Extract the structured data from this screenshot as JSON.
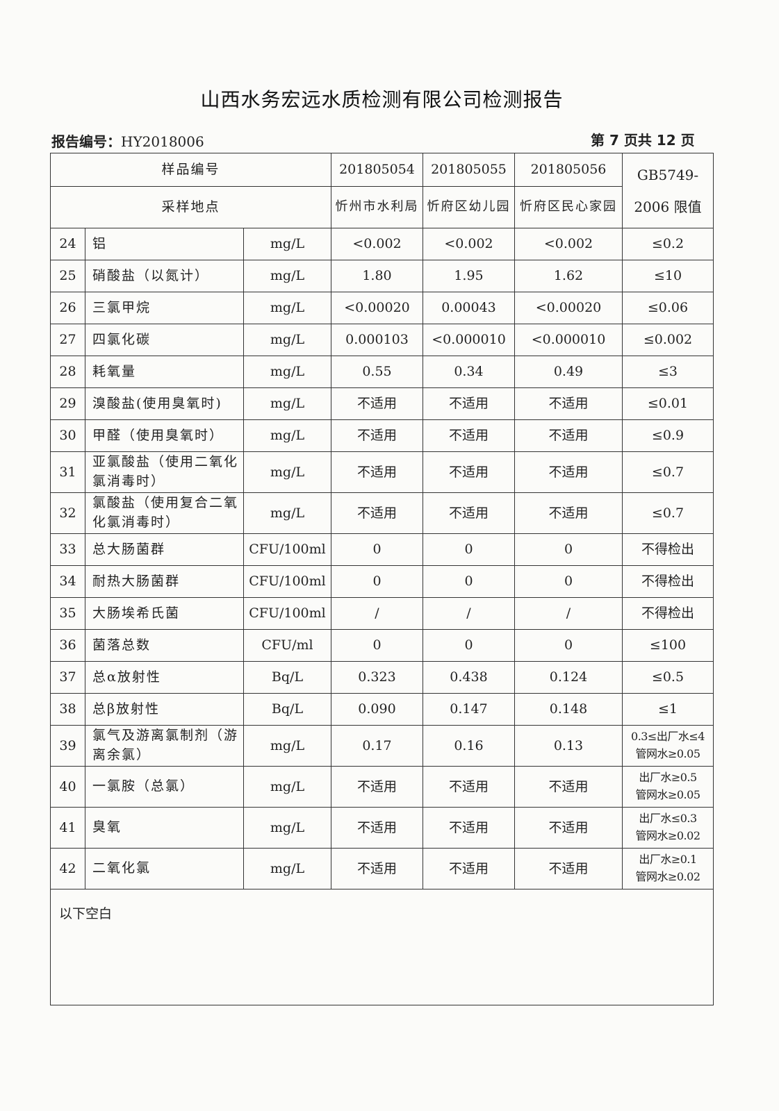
{
  "title": "山西水务宏远水质检测有限公司检测报告",
  "report_no_label": "报告编号：",
  "report_no": "HY2018006",
  "page_info": "第 7 页共 12 页",
  "header": {
    "sample_no_label": "样品编号",
    "site_label": "采样地点",
    "standard_label": "GB5749-2006 限值",
    "samples": [
      {
        "no": "201805054",
        "site": "忻州市水利局"
      },
      {
        "no": "201805055",
        "site": "忻府区幼儿园"
      },
      {
        "no": "201805056",
        "site": "忻府区民心家园"
      }
    ]
  },
  "rows": [
    {
      "n": "24",
      "name": "铝",
      "unit": "mg/L",
      "v": [
        "<0.002",
        "<0.002",
        "<0.002"
      ],
      "limit": "≤0.2"
    },
    {
      "n": "25",
      "name": "硝酸盐（以氮计）",
      "unit": "mg/L",
      "v": [
        "1.80",
        "1.95",
        "1.62"
      ],
      "limit": "≤10"
    },
    {
      "n": "26",
      "name": "三氯甲烷",
      "unit": "mg/L",
      "v": [
        "<0.00020",
        "0.00043",
        "<0.00020"
      ],
      "limit": "≤0.06"
    },
    {
      "n": "27",
      "name": "四氯化碳",
      "unit": "mg/L",
      "v": [
        "0.000103",
        "<0.000010",
        "<0.000010"
      ],
      "limit": "≤0.002"
    },
    {
      "n": "28",
      "name": "耗氧量",
      "unit": "mg/L",
      "v": [
        "0.55",
        "0.34",
        "0.49"
      ],
      "limit": "≤3"
    },
    {
      "n": "29",
      "name": "溴酸盐(使用臭氧时)",
      "unit": "mg/L",
      "v": [
        "不适用",
        "不适用",
        "不适用"
      ],
      "limit": "≤0.01"
    },
    {
      "n": "30",
      "name": "甲醛（使用臭氧时）",
      "unit": "mg/L",
      "v": [
        "不适用",
        "不适用",
        "不适用"
      ],
      "limit": "≤0.9"
    },
    {
      "n": "31",
      "name": "亚氯酸盐（使用二氧化氯消毒时）",
      "unit": "mg/L",
      "v": [
        "不适用",
        "不适用",
        "不适用"
      ],
      "limit": "≤0.7",
      "tall": true
    },
    {
      "n": "32",
      "name": "氯酸盐（使用复合二氧化氯消毒时）",
      "unit": "mg/L",
      "v": [
        "不适用",
        "不适用",
        "不适用"
      ],
      "limit": "≤0.7",
      "tall": true
    },
    {
      "n": "33",
      "name": "总大肠菌群",
      "unit": "CFU/100ml",
      "v": [
        "0",
        "0",
        "0"
      ],
      "limit": "不得检出"
    },
    {
      "n": "34",
      "name": "耐热大肠菌群",
      "unit": "CFU/100ml",
      "v": [
        "0",
        "0",
        "0"
      ],
      "limit": "不得检出"
    },
    {
      "n": "35",
      "name": "大肠埃希氏菌",
      "unit": "CFU/100ml",
      "v": [
        "/",
        "/",
        "/"
      ],
      "limit": "不得检出"
    },
    {
      "n": "36",
      "name": "菌落总数",
      "unit": "CFU/ml",
      "v": [
        "0",
        "0",
        "0"
      ],
      "limit": "≤100"
    },
    {
      "n": "37",
      "name": "总α放射性",
      "unit": "Bq/L",
      "v": [
        "0.323",
        "0.438",
        "0.124"
      ],
      "limit": "≤0.5"
    },
    {
      "n": "38",
      "name": "总β放射性",
      "unit": "Bq/L",
      "v": [
        "0.090",
        "0.147",
        "0.148"
      ],
      "limit": "≤1"
    },
    {
      "n": "39",
      "name": "氯气及游离氯制剂（游离余氯）",
      "unit": "mg/L",
      "v": [
        "0.17",
        "0.16",
        "0.13"
      ],
      "limit": "0.3≤出厂水≤4",
      "limit2": "管网水≥0.05",
      "tall": true
    },
    {
      "n": "40",
      "name": "一氯胺（总氯）",
      "unit": "mg/L",
      "v": [
        "不适用",
        "不适用",
        "不适用"
      ],
      "limit": "出厂水≥0.5",
      "limit2": "管网水≥0.05",
      "tall": true
    },
    {
      "n": "41",
      "name": "臭氧",
      "unit": "mg/L",
      "v": [
        "不适用",
        "不适用",
        "不适用"
      ],
      "limit": "出厂水≤0.3",
      "limit2": "管网水≥0.02",
      "tall": true
    },
    {
      "n": "42",
      "name": "二氧化氯",
      "unit": "mg/L",
      "v": [
        "不适用",
        "不适用",
        "不适用"
      ],
      "limit": "出厂水≥0.1",
      "limit2": "管网水≥0.02",
      "tall": true
    }
  ],
  "footer_note": "以下空白"
}
